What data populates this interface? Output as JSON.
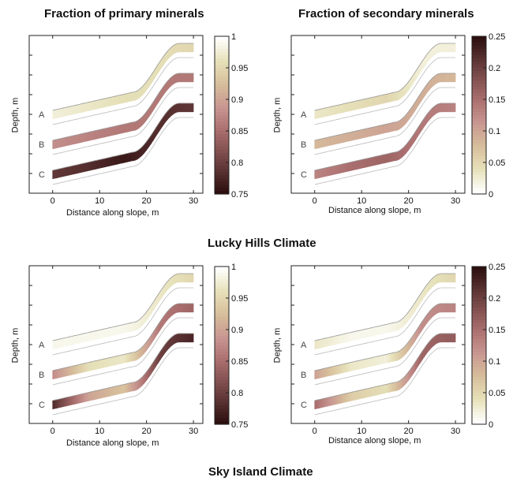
{
  "figure_titles": {
    "top_left": "Fraction of primary minerals",
    "top_right": "Fraction of secondary minerals",
    "middle": "Lucky Hills Climate",
    "bottom": "Sky Island Climate"
  },
  "axes": {
    "xlabel": "Distance along slope, m",
    "ylabel": "Depth, m",
    "xticks": [
      "0",
      "10",
      "20",
      "30"
    ]
  },
  "colorbars": {
    "primary": {
      "ticks": [
        "1",
        "0.95",
        "0.9",
        "0.85",
        "0.8",
        "0.75"
      ],
      "min": 0.75,
      "max": 1.0
    },
    "secondary": {
      "ticks": [
        "0.25",
        "0.2",
        "0.15",
        "0.1",
        "0.05",
        "0"
      ],
      "min": 0.0,
      "max": 0.25
    }
  },
  "chart_data": [
    {
      "type": "heatmap",
      "title": "Fraction of primary minerals",
      "climate": "Lucky Hills Climate",
      "xlabel": "Distance along slope, m",
      "ylabel": "Depth, m",
      "xlim": [
        -5,
        32
      ],
      "profiles": [
        {
          "label": "A",
          "values": [
            0.98,
            0.97,
            0.96,
            0.96,
            0.95
          ]
        },
        {
          "label": "B",
          "values": [
            0.88,
            0.87,
            0.86,
            0.86,
            0.86
          ]
        },
        {
          "label": "C",
          "values": [
            0.79,
            0.78,
            0.76,
            0.78,
            0.79
          ]
        }
      ],
      "colormap": "pink",
      "clim": [
        0.75,
        1.0
      ]
    },
    {
      "type": "heatmap",
      "title": "Fraction of secondary minerals",
      "climate": "Lucky Hills Climate",
      "xlabel": "Distance along slope, m",
      "ylabel": "Depth, m",
      "xlim": [
        -5,
        32
      ],
      "profiles": [
        {
          "label": "A",
          "values": [
            0.03,
            0.04,
            0.05,
            0.02,
            0.02
          ]
        },
        {
          "label": "B",
          "values": [
            0.08,
            0.09,
            0.1,
            0.09,
            0.08
          ]
        },
        {
          "label": "C",
          "values": [
            0.13,
            0.15,
            0.16,
            0.14,
            0.13
          ]
        }
      ],
      "colormap": "pink",
      "clim": [
        0.0,
        0.25
      ]
    },
    {
      "type": "heatmap",
      "title": "Fraction of primary minerals",
      "climate": "Sky Island Climate",
      "xlabel": "Distance along slope, m",
      "ylabel": "Depth, m",
      "xlim": [
        -5,
        32
      ],
      "profiles": [
        {
          "label": "A",
          "values": [
            0.99,
            0.99,
            0.99,
            0.97,
            0.95
          ]
        },
        {
          "label": "B",
          "values": [
            0.88,
            0.96,
            0.97,
            0.86,
            0.84
          ]
        },
        {
          "label": "C",
          "values": [
            0.78,
            0.9,
            0.93,
            0.8,
            0.77
          ]
        }
      ],
      "colormap": "pink",
      "clim": [
        0.75,
        1.0
      ]
    },
    {
      "type": "heatmap",
      "title": "Fraction of secondary minerals",
      "climate": "Sky Island Climate",
      "xlabel": "Distance along slope, m",
      "ylabel": "Depth, m",
      "xlim": [
        -5,
        32
      ],
      "profiles": [
        {
          "label": "A",
          "values": [
            0.03,
            0.01,
            0.01,
            0.03,
            0.05
          ]
        },
        {
          "label": "B",
          "values": [
            0.1,
            0.03,
            0.02,
            0.12,
            0.13
          ]
        },
        {
          "label": "C",
          "values": [
            0.15,
            0.06,
            0.04,
            0.16,
            0.17
          ]
        }
      ],
      "colormap": "pink",
      "clim": [
        0.0,
        0.25
      ]
    }
  ]
}
